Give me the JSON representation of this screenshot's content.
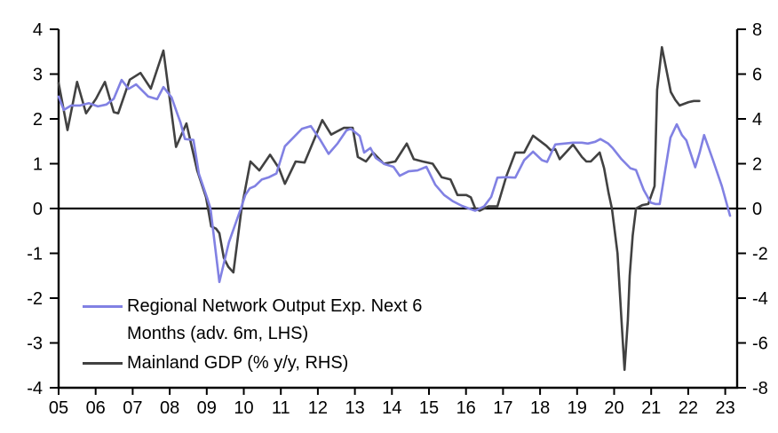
{
  "chart_data": {
    "type": "line",
    "title": "",
    "x_ticks": [
      "05",
      "06",
      "07",
      "08",
      "09",
      "10",
      "11",
      "12",
      "13",
      "14",
      "15",
      "16",
      "17",
      "18",
      "19",
      "20",
      "21",
      "22",
      "23"
    ],
    "lhs_axis": {
      "min": -4,
      "max": 4,
      "ticks": [
        4,
        3,
        2,
        1,
        0,
        -1,
        -2,
        -3,
        -4
      ]
    },
    "rhs_axis": {
      "min": -8,
      "max": 8,
      "ticks": [
        8,
        6,
        4,
        2,
        0,
        -2,
        -4,
        -6,
        -8
      ]
    },
    "grid": "off",
    "zero_line": true,
    "legend_position": "bottom-left-inside",
    "series": [
      {
        "name": "Regional Network Output Exp. Next 6 Months (adv. 6m, LHS)",
        "axis": "lhs",
        "color": "#8181E3",
        "points": [
          [
            2005.0,
            2.5
          ],
          [
            2005.14,
            2.2
          ],
          [
            2005.34,
            2.3
          ],
          [
            2005.58,
            2.3
          ],
          [
            2005.82,
            2.35
          ],
          [
            2006.06,
            2.28
          ],
          [
            2006.29,
            2.32
          ],
          [
            2006.49,
            2.45
          ],
          [
            2006.7,
            2.87
          ],
          [
            2006.89,
            2.67
          ],
          [
            2007.09,
            2.77
          ],
          [
            2007.42,
            2.5
          ],
          [
            2007.66,
            2.44
          ],
          [
            2007.83,
            2.71
          ],
          [
            2008.05,
            2.48
          ],
          [
            2008.21,
            2.1
          ],
          [
            2008.29,
            1.92
          ],
          [
            2008.41,
            1.55
          ],
          [
            2008.64,
            1.53
          ],
          [
            2008.79,
            0.77
          ],
          [
            2009.01,
            0.24
          ],
          [
            2009.1,
            0.0
          ],
          [
            2009.34,
            -1.64
          ],
          [
            2009.6,
            -0.75
          ],
          [
            2009.92,
            0.0
          ],
          [
            2010.04,
            0.3
          ],
          [
            2010.16,
            0.45
          ],
          [
            2010.3,
            0.5
          ],
          [
            2010.49,
            0.65
          ],
          [
            2010.68,
            0.7
          ],
          [
            2010.88,
            0.78
          ],
          [
            2011.11,
            1.39
          ],
          [
            2011.57,
            1.78
          ],
          [
            2011.81,
            1.84
          ],
          [
            2012.05,
            1.55
          ],
          [
            2012.29,
            1.22
          ],
          [
            2012.53,
            1.45
          ],
          [
            2012.77,
            1.74
          ],
          [
            2012.89,
            1.78
          ],
          [
            2013.13,
            1.62
          ],
          [
            2013.25,
            1.25
          ],
          [
            2013.42,
            1.35
          ],
          [
            2013.56,
            1.13
          ],
          [
            2013.8,
            0.99
          ],
          [
            2014.04,
            0.93
          ],
          [
            2014.21,
            0.73
          ],
          [
            2014.45,
            0.83
          ],
          [
            2014.69,
            0.85
          ],
          [
            2014.93,
            0.93
          ],
          [
            2015.17,
            0.53
          ],
          [
            2015.41,
            0.3
          ],
          [
            2015.65,
            0.16
          ],
          [
            2015.89,
            0.06
          ],
          [
            2016.08,
            0.0
          ],
          [
            2016.25,
            -0.05
          ],
          [
            2016.49,
            0.05
          ],
          [
            2016.68,
            0.26
          ],
          [
            2016.85,
            0.69
          ],
          [
            2017.09,
            0.7
          ],
          [
            2017.33,
            0.69
          ],
          [
            2017.57,
            1.08
          ],
          [
            2017.81,
            1.27
          ],
          [
            2018.05,
            1.08
          ],
          [
            2018.19,
            1.04
          ],
          [
            2018.41,
            1.43
          ],
          [
            2018.65,
            1.45
          ],
          [
            2018.89,
            1.47
          ],
          [
            2019.13,
            1.47
          ],
          [
            2019.29,
            1.45
          ],
          [
            2019.49,
            1.49
          ],
          [
            2019.63,
            1.55
          ],
          [
            2019.84,
            1.45
          ],
          [
            2019.96,
            1.35
          ],
          [
            2020.2,
            1.1
          ],
          [
            2020.44,
            0.9
          ],
          [
            2020.59,
            0.86
          ],
          [
            2020.8,
            0.41
          ],
          [
            2020.99,
            0.13
          ],
          [
            2021.11,
            0.1
          ],
          [
            2021.23,
            0.1
          ],
          [
            2021.31,
            0.5
          ],
          [
            2021.52,
            1.58
          ],
          [
            2021.69,
            1.88
          ],
          [
            2021.83,
            1.64
          ],
          [
            2021.95,
            1.52
          ],
          [
            2022.19,
            0.92
          ],
          [
            2022.31,
            1.25
          ],
          [
            2022.43,
            1.64
          ],
          [
            2022.67,
            1.08
          ],
          [
            2022.91,
            0.5
          ],
          [
            2023.13,
            -0.16
          ]
        ]
      },
      {
        "name": "Mainland GDP (% y/y, RHS)",
        "axis": "rhs",
        "color": "#414141",
        "points": [
          [
            2005.0,
            5.6
          ],
          [
            2005.24,
            3.5
          ],
          [
            2005.5,
            5.65
          ],
          [
            2005.74,
            4.25
          ],
          [
            2006.01,
            4.9
          ],
          [
            2006.25,
            5.65
          ],
          [
            2006.49,
            4.3
          ],
          [
            2006.61,
            4.25
          ],
          [
            2006.92,
            5.75
          ],
          [
            2007.21,
            6.05
          ],
          [
            2007.49,
            5.35
          ],
          [
            2007.83,
            7.05
          ],
          [
            2008.17,
            2.75
          ],
          [
            2008.45,
            3.8
          ],
          [
            2008.74,
            1.7
          ],
          [
            2008.98,
            0.5
          ],
          [
            2009.12,
            -0.8
          ],
          [
            2009.25,
            -0.9
          ],
          [
            2009.34,
            -1.1
          ],
          [
            2009.46,
            -2.2
          ],
          [
            2009.58,
            -2.6
          ],
          [
            2009.72,
            -2.85
          ],
          [
            2009.94,
            0.0
          ],
          [
            2010.18,
            2.1
          ],
          [
            2010.42,
            1.7
          ],
          [
            2010.71,
            2.4
          ],
          [
            2010.95,
            1.8
          ],
          [
            2011.11,
            1.1
          ],
          [
            2011.4,
            2.1
          ],
          [
            2011.64,
            2.05
          ],
          [
            2011.88,
            3.0
          ],
          [
            2012.12,
            3.95
          ],
          [
            2012.36,
            3.3
          ],
          [
            2012.7,
            3.6
          ],
          [
            2012.94,
            3.6
          ],
          [
            2013.08,
            2.3
          ],
          [
            2013.3,
            2.1
          ],
          [
            2013.49,
            2.5
          ],
          [
            2013.78,
            2.0
          ],
          [
            2014.09,
            2.1
          ],
          [
            2014.4,
            2.9
          ],
          [
            2014.59,
            2.2
          ],
          [
            2014.83,
            2.1
          ],
          [
            2015.1,
            2.0
          ],
          [
            2015.34,
            1.4
          ],
          [
            2015.58,
            1.3
          ],
          [
            2015.77,
            0.6
          ],
          [
            2016.01,
            0.6
          ],
          [
            2016.13,
            0.5
          ],
          [
            2016.25,
            0.0
          ],
          [
            2016.37,
            -0.1
          ],
          [
            2016.61,
            0.1
          ],
          [
            2016.85,
            0.1
          ],
          [
            2017.09,
            1.45
          ],
          [
            2017.33,
            2.5
          ],
          [
            2017.57,
            2.5
          ],
          [
            2017.81,
            3.25
          ],
          [
            2017.93,
            3.1
          ],
          [
            2018.17,
            2.8
          ],
          [
            2018.29,
            2.6
          ],
          [
            2018.41,
            2.65
          ],
          [
            2018.53,
            2.2
          ],
          [
            2018.89,
            2.85
          ],
          [
            2019.13,
            2.3
          ],
          [
            2019.25,
            2.1
          ],
          [
            2019.37,
            2.1
          ],
          [
            2019.61,
            2.5
          ],
          [
            2019.73,
            1.8
          ],
          [
            2019.85,
            0.7
          ],
          [
            2019.94,
            0.0
          ],
          [
            2020.09,
            -2.0
          ],
          [
            2020.2,
            -5.0
          ],
          [
            2020.28,
            -7.2
          ],
          [
            2020.37,
            -5.0
          ],
          [
            2020.42,
            -3.0
          ],
          [
            2020.5,
            -1.2
          ],
          [
            2020.59,
            0.0
          ],
          [
            2020.76,
            0.15
          ],
          [
            2020.92,
            0.2
          ],
          [
            2021.09,
            1.0
          ],
          [
            2021.16,
            5.3
          ],
          [
            2021.29,
            7.2
          ],
          [
            2021.53,
            5.2
          ],
          [
            2021.65,
            4.85
          ],
          [
            2021.77,
            4.6
          ],
          [
            2022.01,
            4.75
          ],
          [
            2022.15,
            4.8
          ],
          [
            2022.3,
            4.8
          ]
        ]
      }
    ],
    "legend": {
      "entries": [
        {
          "label_lines": [
            "Regional Network Output Exp. Next 6",
            "Months (adv. 6m, LHS)"
          ],
          "color": "#8181E3"
        },
        {
          "label_lines": [
            "Mainland GDP (% y/y, RHS)"
          ],
          "color": "#414141"
        }
      ]
    }
  }
}
